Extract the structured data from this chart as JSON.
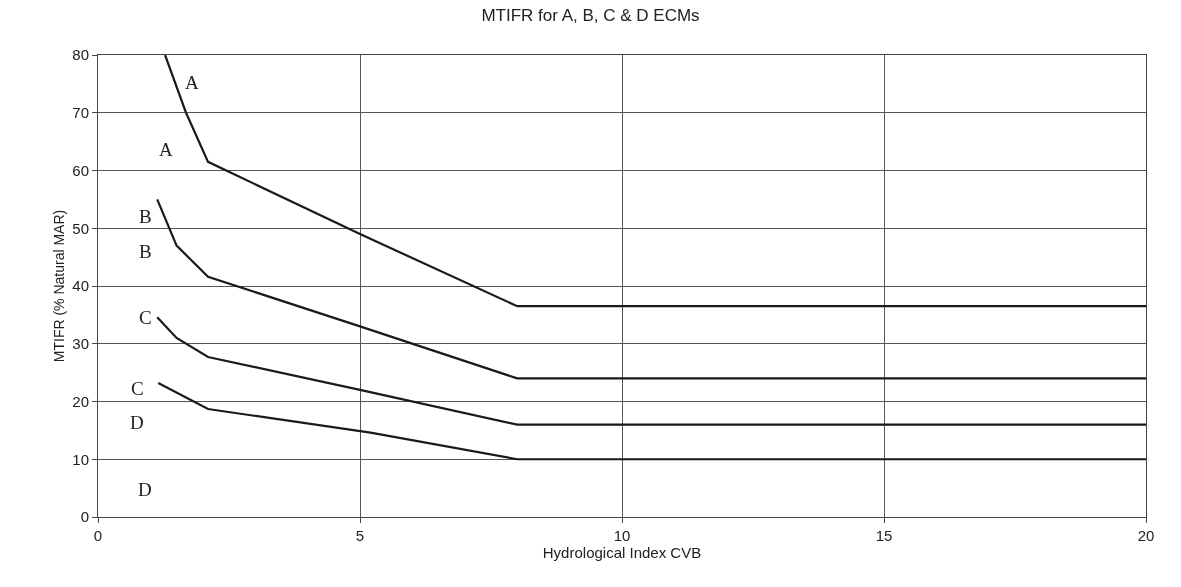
{
  "chart_data": {
    "type": "line",
    "title": "MTIFR for A, B, C & D ECMs",
    "xlabel": "Hydrological Index CVB",
    "ylabel": "MTIFR (% Natural MAR)",
    "xlim": [
      0,
      20
    ],
    "xticks": [
      0,
      5,
      10,
      15,
      20
    ],
    "ylim": [
      0,
      80
    ],
    "yticks": [
      0,
      10,
      20,
      30,
      40,
      50,
      60,
      70,
      80
    ],
    "grid": true,
    "marker": "none",
    "line_style": "solid",
    "series": [
      {
        "color": "#1a1a1a",
        "x": [
          1.28,
          1.68,
          2.1,
          5,
          8,
          20
        ],
        "values": [
          80,
          70,
          61.5,
          49,
          36.5,
          36.5
        ]
      },
      {
        "color": "#1a1a1a",
        "x": [
          1.13,
          1.5,
          2.1,
          5,
          8,
          20
        ],
        "values": [
          55,
          47,
          41.6,
          33,
          24,
          24
        ]
      },
      {
        "color": "#1a1a1a",
        "x": [
          1.13,
          1.5,
          2.1,
          5,
          8,
          20
        ],
        "values": [
          34.6,
          31,
          27.7,
          22,
          16,
          16
        ]
      },
      {
        "color": "#1a1a1a",
        "x": [
          1.15,
          2.1,
          5.2,
          8,
          20
        ],
        "values": [
          23.2,
          18.7,
          14.6,
          10,
          10
        ]
      }
    ],
    "annotations": [
      "A",
      "A",
      "B",
      "B",
      "C",
      "C",
      "D",
      "D"
    ]
  }
}
